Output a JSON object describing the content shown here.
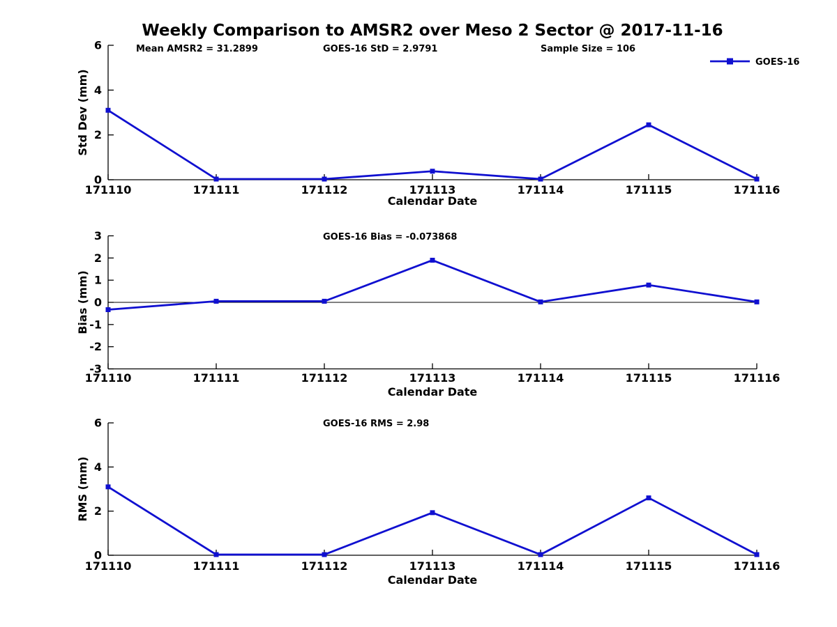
{
  "title": "Weekly Comparison to AMSR2 over Meso 2 Sector @ 2017-11-16",
  "colors": {
    "series": "#1010d0",
    "axis": "#000000",
    "text": "#000000",
    "background": "#ffffff"
  },
  "legend": {
    "label": "GOES-16",
    "position": "top-right",
    "marker": "square"
  },
  "chart_data": [
    {
      "type": "line",
      "id": "std-dev",
      "annotations": [
        "Mean AMSR2 = 31.2899",
        "GOES-16 StD = 2.9791",
        "Sample Size = 106"
      ],
      "xlabel": "Calendar Date",
      "ylabel": "Std Dev (mm)",
      "categories": [
        "171110",
        "171111",
        "171112",
        "171113",
        "171114",
        "171115",
        "171116"
      ],
      "series": [
        {
          "name": "GOES-16",
          "values": [
            3.1,
            0.03,
            0.03,
            0.38,
            0.03,
            2.45,
            0.03
          ]
        }
      ],
      "ylim": [
        0,
        6
      ],
      "yticks": [
        0,
        2,
        4,
        6
      ],
      "zero_line": false,
      "legend_visible": true,
      "grid": false
    },
    {
      "type": "line",
      "id": "bias",
      "annotations": [
        "GOES-16 Bias  = -0.073868"
      ],
      "xlabel": "Calendar Date",
      "ylabel": "Bias (mm)",
      "categories": [
        "171110",
        "171111",
        "171112",
        "171113",
        "171114",
        "171115",
        "171116"
      ],
      "series": [
        {
          "name": "GOES-16",
          "values": [
            -0.33,
            0.05,
            0.05,
            1.9,
            0.02,
            0.78,
            0.02
          ]
        }
      ],
      "ylim": [
        -3,
        3
      ],
      "yticks": [
        -3,
        -2,
        -1,
        0,
        1,
        2,
        3
      ],
      "zero_line": true,
      "legend_visible": false,
      "grid": false
    },
    {
      "type": "line",
      "id": "rms",
      "annotations": [
        "GOES-16 RMS = 2.98"
      ],
      "xlabel": "Calendar Date",
      "ylabel": "RMS (mm)",
      "categories": [
        "171110",
        "171111",
        "171112",
        "171113",
        "171114",
        "171115",
        "171116"
      ],
      "series": [
        {
          "name": "GOES-16",
          "values": [
            3.1,
            0.03,
            0.03,
            1.93,
            0.03,
            2.6,
            0.03
          ]
        }
      ],
      "ylim": [
        0,
        6
      ],
      "yticks": [
        0,
        2,
        4,
        6
      ],
      "zero_line": false,
      "legend_visible": false,
      "grid": false
    }
  ]
}
